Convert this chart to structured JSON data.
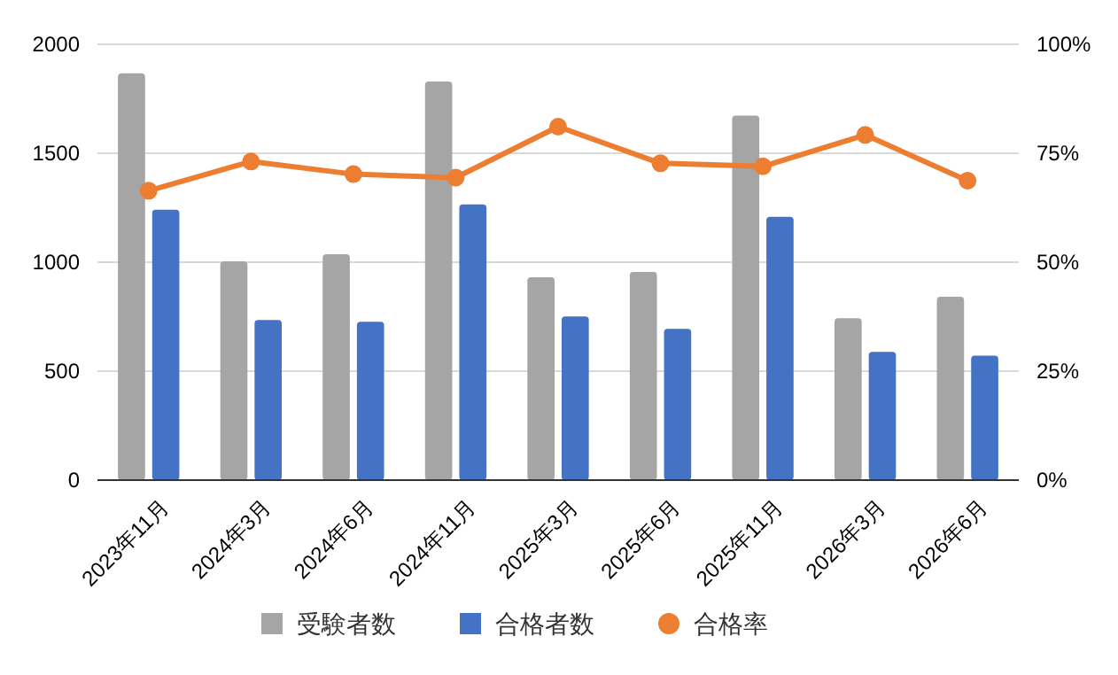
{
  "chart_data": {
    "type": "bar",
    "categories": [
      "2023年11月",
      "2024年3月",
      "2024年6月",
      "2024年11月",
      "2025年3月",
      "2025年6月",
      "2025年11月",
      "2026年3月",
      "2026年6月"
    ],
    "series": [
      {
        "name": "受験者数",
        "color": "#a5a5a5",
        "values": [
          1867,
          1004,
          1037,
          1829,
          931,
          955,
          1673,
          743,
          841
        ]
      },
      {
        "name": "合格者数",
        "color": "#4472c4",
        "values": [
          1241,
          735,
          727,
          1265,
          751,
          694,
          1208,
          588,
          571
        ]
      },
      {
        "name": "合格率",
        "type": "line",
        "axis": "y2",
        "color": "#ed7d31",
        "values": [
          66.4,
          73.1,
          70.2,
          69.4,
          81.1,
          72.7,
          72.0,
          79.2,
          68.7
        ]
      }
    ],
    "ylim": [
      0,
      2000
    ],
    "yticks": [
      0,
      500,
      1000,
      1500,
      2000
    ],
    "y2lim": [
      0,
      100
    ],
    "y2ticks": [
      {
        "value": 0,
        "label": "0%"
      },
      {
        "value": 25,
        "label": "25%"
      },
      {
        "value": 50,
        "label": "50%"
      },
      {
        "value": 75,
        "label": "75%"
      },
      {
        "value": 100,
        "label": "100%"
      }
    ],
    "grid": "y",
    "legend": "bottom",
    "marker": "circle",
    "line_style": "solid"
  }
}
